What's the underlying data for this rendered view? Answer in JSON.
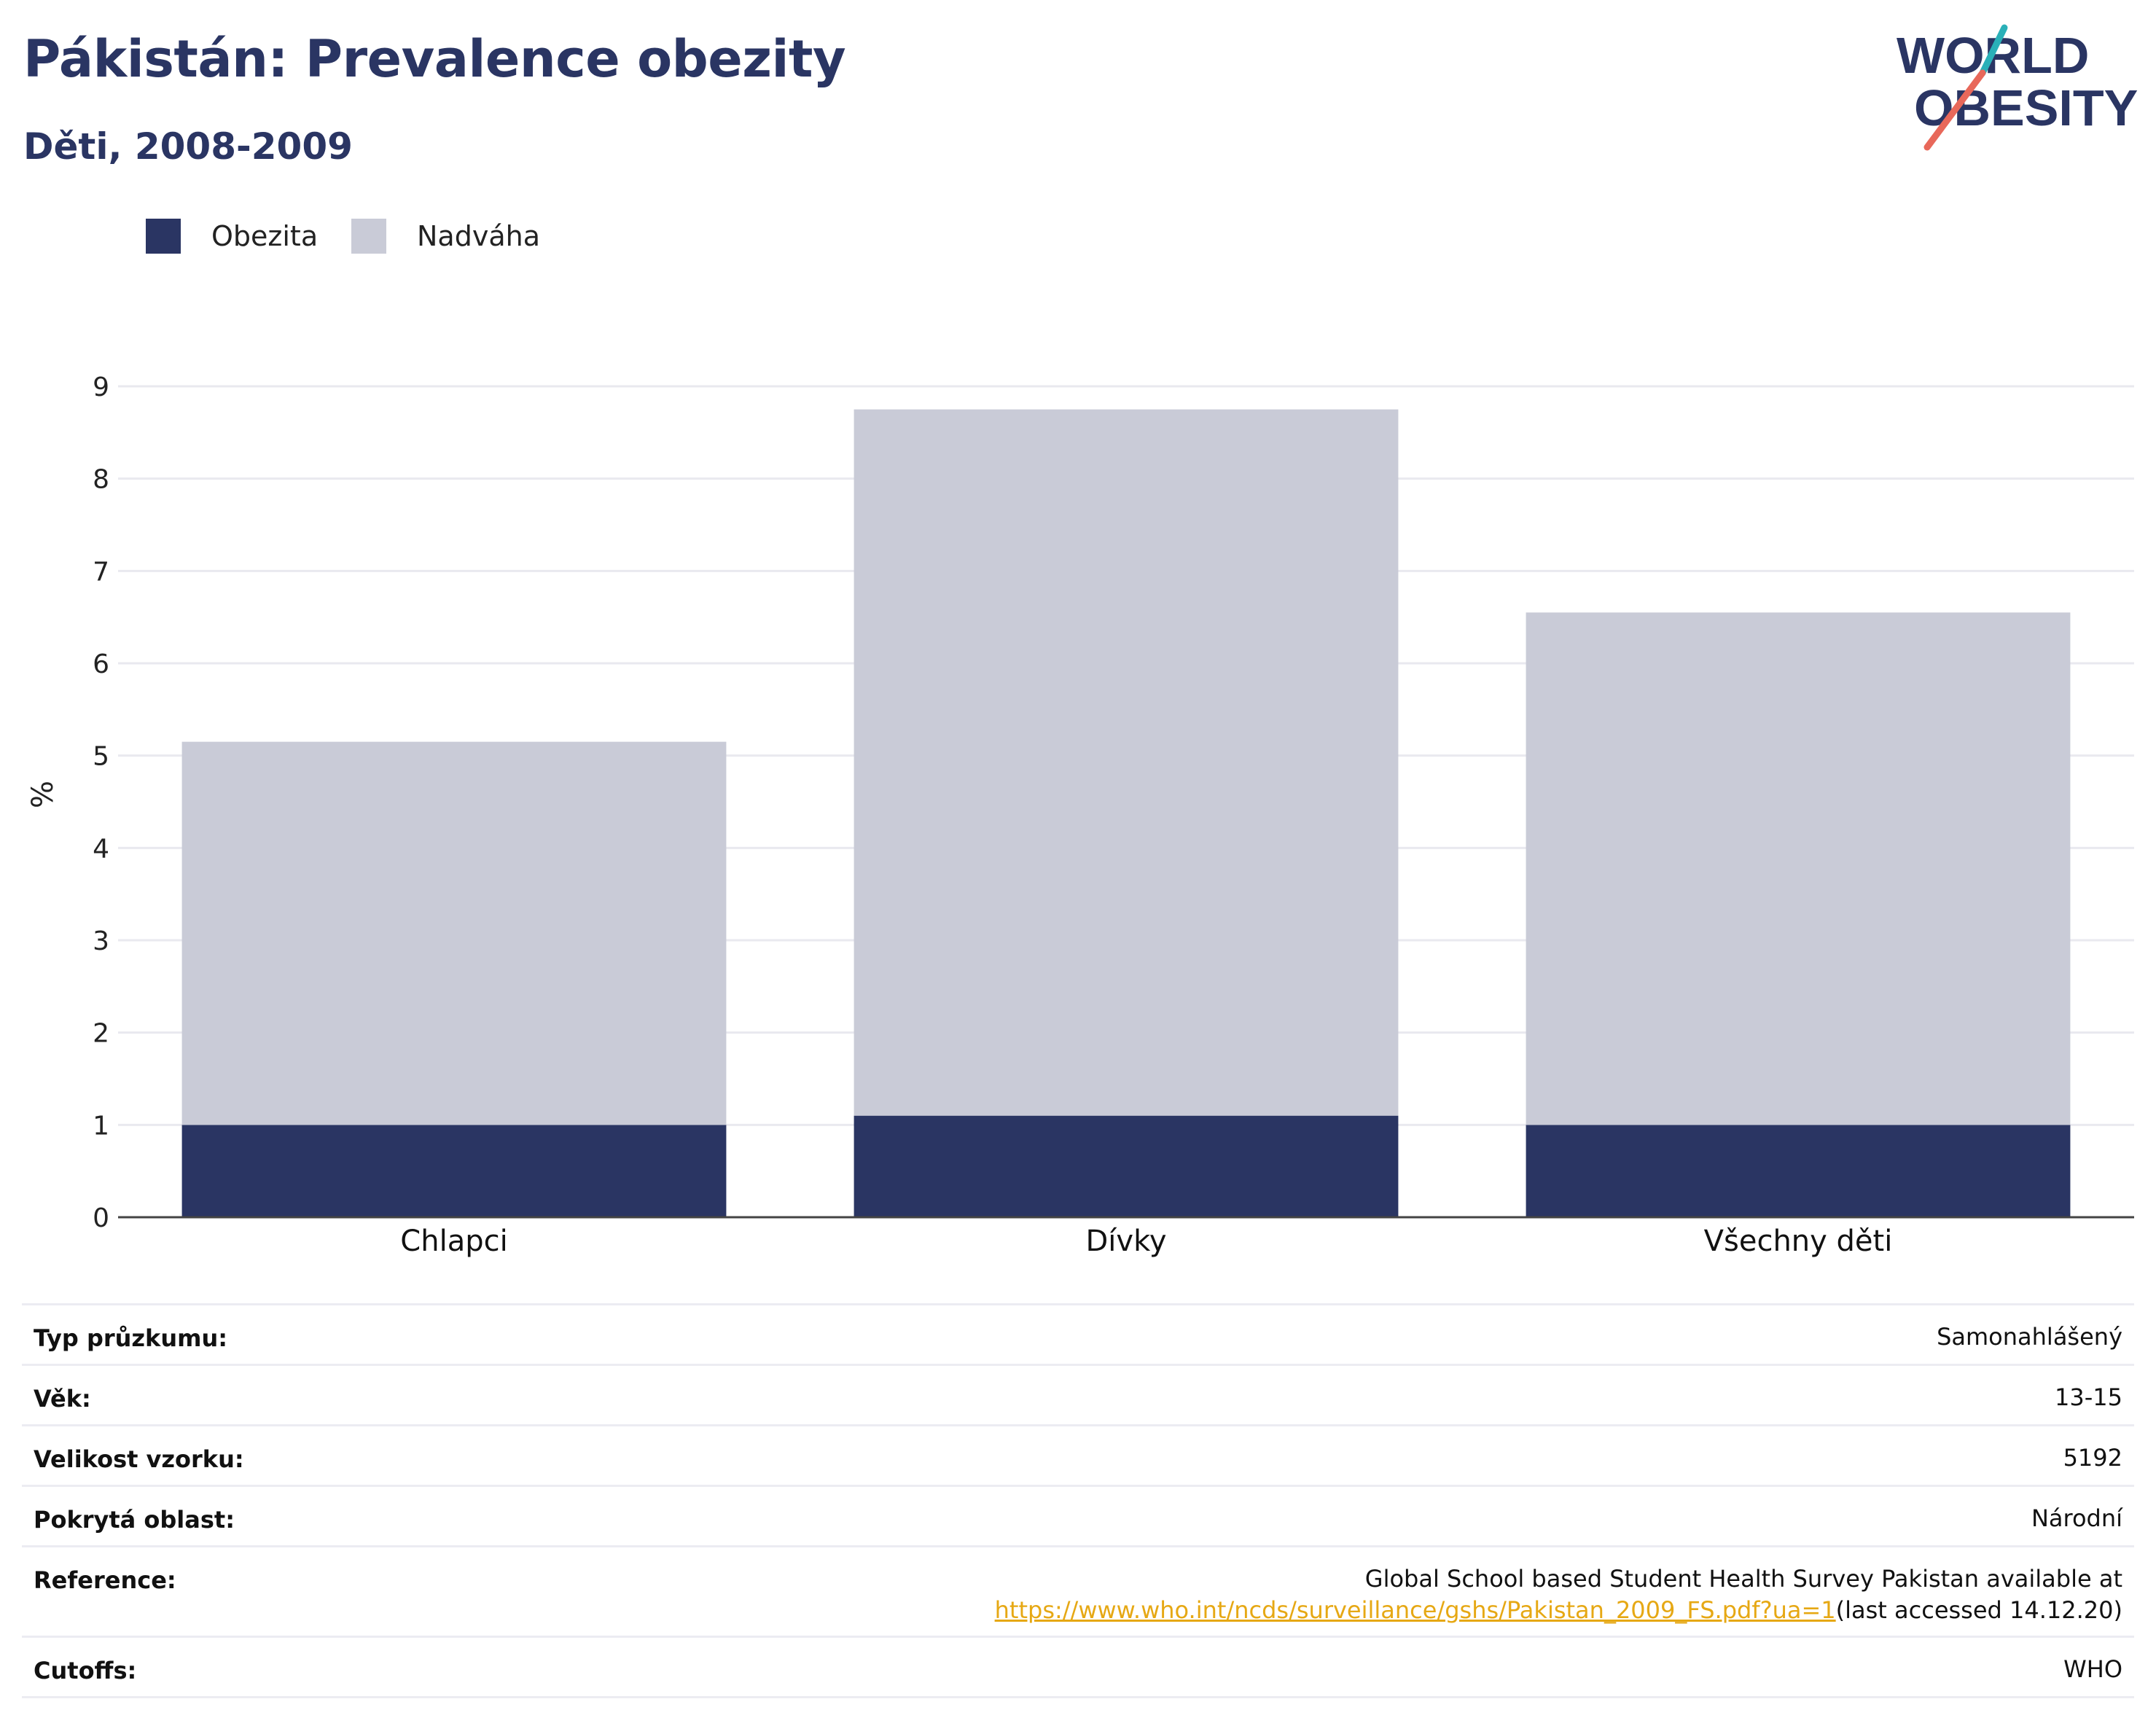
{
  "title": "Pákistán: Prevalence obezity",
  "subtitle": "Děti, 2008-2009",
  "logo": {
    "line1": "WORLD",
    "line2": "OBESITY"
  },
  "colors": {
    "obesity": "#2a3563",
    "overweight": "#c9cbd7",
    "title": "#2a3563",
    "grid": "#e9e9ef",
    "axis": "#444444",
    "link": "#e6a814",
    "logo_teal": "#2ab0b8",
    "logo_coral": "#e8685a"
  },
  "chart_data": {
    "type": "bar",
    "stacked": true,
    "categories": [
      "Chlapci",
      "Dívky",
      "Všechny děti"
    ],
    "series": [
      {
        "name": "Obezita",
        "values": [
          1.0,
          1.1,
          1.0
        ]
      },
      {
        "name": "Nadváha",
        "values": [
          4.15,
          7.65,
          5.55
        ]
      }
    ],
    "ylabel": "%",
    "ylim": [
      0,
      9
    ],
    "yticks": [
      "0",
      "1",
      "2",
      "3",
      "4",
      "5",
      "6",
      "7",
      "8",
      "9"
    ],
    "grid": true,
    "legend": "top-left"
  },
  "info": {
    "survey_type": {
      "label": "Typ průzkumu:",
      "value": "Samonahlášený"
    },
    "age": {
      "label": "Věk:",
      "value": "13-15"
    },
    "sample_size": {
      "label": "Velikost vzorku:",
      "value": "5192"
    },
    "area": {
      "label": "Pokrytá oblast:",
      "value": "Národní"
    },
    "reference": {
      "label": "Reference:",
      "line1": "Global School based Student Health Survey Pakistan available at",
      "link": "https://www.who.int/ncds/surveillance/gshs/Pakistan_2009_FS.pdf?ua=1",
      "suffix": "(last accessed 14.12.20)"
    },
    "cutoffs": {
      "label": "Cutoffs:",
      "value": "WHO"
    }
  }
}
